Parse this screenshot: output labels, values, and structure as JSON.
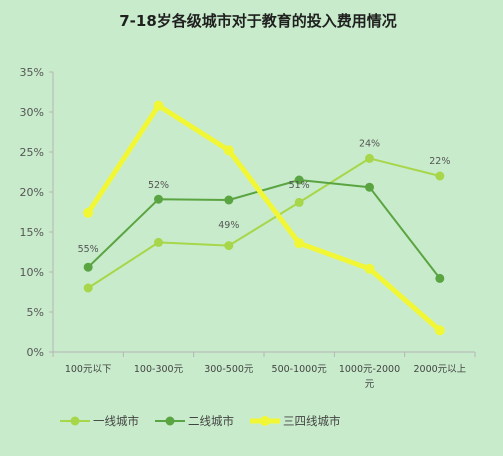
{
  "chart_data": {
    "type": "line",
    "title": "7-18岁各级城市对于教育的投入费用情况",
    "xlabel": "",
    "ylabel": "",
    "categories": [
      "100元以下",
      "100-300元",
      "300-500元",
      "500-1000元",
      "1000元-2000元",
      "2000元以上"
    ],
    "category_lines": [
      [
        "100元以下"
      ],
      [
        "100-300元"
      ],
      [
        "300-500元"
      ],
      [
        "500-1000元"
      ],
      [
        "1000元-2000",
        "元"
      ],
      [
        "2000元以上"
      ]
    ],
    "y_ticks": [
      "0%",
      "5%",
      "10%",
      "15%",
      "20%",
      "25%",
      "30%",
      "35%"
    ],
    "ylim": [
      0,
      35
    ],
    "grid": false,
    "legend_position": "bottom-left",
    "series": [
      {
        "name": "一线城市",
        "color": "#a7d64a",
        "values": [
          8.0,
          13.7,
          13.3,
          18.7,
          24.2,
          22.0
        ]
      },
      {
        "name": "二线城市",
        "color": "#5aa442",
        "values": [
          10.6,
          19.1,
          19.0,
          21.5,
          20.6,
          9.2
        ]
      },
      {
        "name": "三四线城市",
        "color": "#f2f735",
        "values": [
          17.4,
          30.8,
          25.2,
          13.6,
          10.4,
          2.7
        ]
      }
    ],
    "annotations": [
      "55%",
      "52%",
      "49%",
      "51%",
      "24%",
      "22%"
    ]
  }
}
